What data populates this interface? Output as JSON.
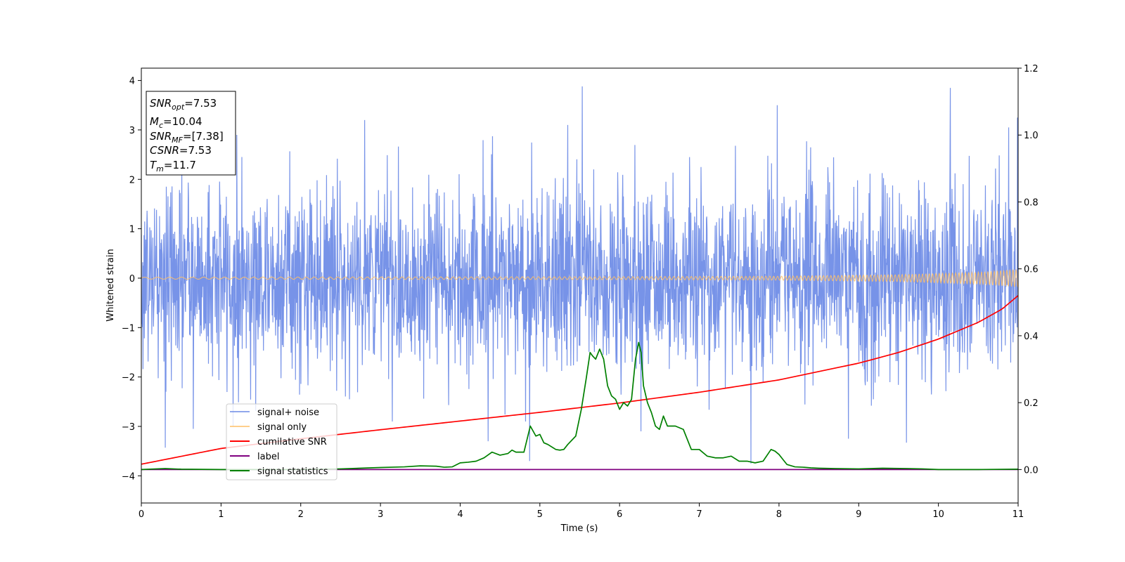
{
  "chart_data": {
    "type": "line",
    "xlabel": "Time (s)",
    "ylabel": "Whitened strain",
    "xlim": [
      0,
      11
    ],
    "ylim": [
      -4.55,
      4.25
    ],
    "y2lim": [
      -0.1,
      1.2
    ],
    "xticks": [
      0,
      1,
      2,
      3,
      4,
      5,
      6,
      7,
      8,
      9,
      10,
      11
    ],
    "yticks": [
      -4,
      -3,
      -2,
      -1,
      0,
      1,
      2,
      3,
      4
    ],
    "y2ticks": [
      0.0,
      0.2,
      0.4,
      0.6,
      0.8,
      1.0,
      1.2
    ],
    "grid": false,
    "legend_position": "lower-left",
    "annotation": [
      {
        "name": "SNR",
        "sub": "opt",
        "value": "=7.53"
      },
      {
        "name": "M",
        "sub": "c",
        "value": "=10.04"
      },
      {
        "name": "SNR",
        "sub": "MF",
        "value": "=[7.38]"
      },
      {
        "name": "CSNR",
        "sub": "",
        "value": "=7.53"
      },
      {
        "name": "T",
        "sub": "m",
        "value": "=11.7"
      }
    ],
    "series": [
      {
        "name": "signal+ noise",
        "axis": "left",
        "color": "#6b8ae6",
        "noise_std": 0.95,
        "peaks": [
          {
            "x": 0.3,
            "y": -3.43
          },
          {
            "x": 0.65,
            "y": -3.05
          },
          {
            "x": 1.15,
            "y": -3.0
          },
          {
            "x": 2.8,
            "y": 3.2
          },
          {
            "x": 3.15,
            "y": -2.9
          },
          {
            "x": 4.35,
            "y": -3.3
          },
          {
            "x": 4.87,
            "y": -3.7
          },
          {
            "x": 5.35,
            "y": 3.1
          },
          {
            "x": 5.53,
            "y": 3.88
          },
          {
            "x": 6.27,
            "y": -3.1
          },
          {
            "x": 7.65,
            "y": -3.75
          },
          {
            "x": 7.98,
            "y": 3.5
          },
          {
            "x": 8.87,
            "y": -3.25
          },
          {
            "x": 9.6,
            "y": -3.33
          },
          {
            "x": 10.15,
            "y": 3.85
          },
          {
            "x": 10.88,
            "y": 3.05
          },
          {
            "x": 10.99,
            "y": 3.25
          }
        ]
      },
      {
        "name": "signal only",
        "axis": "left",
        "color": "#ffbf66",
        "envelope": [
          [
            0,
            0.02
          ],
          [
            3,
            0.025
          ],
          [
            6,
            0.03
          ],
          [
            8,
            0.04
          ],
          [
            9.5,
            0.07
          ],
          [
            10.5,
            0.12
          ],
          [
            11,
            0.18
          ]
        ]
      },
      {
        "name": "cumilative SNR",
        "axis": "right",
        "color": "#ff0000",
        "x": [
          0,
          1,
          2,
          3,
          4,
          5,
          6,
          7,
          8,
          9,
          9.5,
          10,
          10.5,
          10.8,
          11
        ],
        "y": [
          0.016,
          0.063,
          0.092,
          0.119,
          0.145,
          0.171,
          0.199,
          0.231,
          0.268,
          0.318,
          0.35,
          0.39,
          0.44,
          0.48,
          0.52
        ]
      },
      {
        "name": "label",
        "axis": "right",
        "color": "#800080",
        "x": [
          0,
          11
        ],
        "y": [
          0.0,
          0.0
        ]
      },
      {
        "name": "signal statistics",
        "axis": "right",
        "color": "#008000",
        "x": [
          0,
          0.3,
          0.5,
          1,
          2,
          2.5,
          3,
          3.3,
          3.5,
          3.7,
          3.8,
          3.9,
          4.0,
          4.1,
          4.2,
          4.3,
          4.4,
          4.5,
          4.6,
          4.65,
          4.7,
          4.8,
          4.88,
          4.95,
          5.0,
          5.05,
          5.1,
          5.2,
          5.25,
          5.3,
          5.35,
          5.45,
          5.52,
          5.58,
          5.63,
          5.66,
          5.7,
          5.75,
          5.8,
          5.85,
          5.9,
          5.95,
          6.0,
          6.05,
          6.1,
          6.15,
          6.2,
          6.24,
          6.27,
          6.3,
          6.35,
          6.4,
          6.45,
          6.5,
          6.55,
          6.6,
          6.7,
          6.8,
          6.9,
          7.0,
          7.1,
          7.2,
          7.3,
          7.4,
          7.5,
          7.6,
          7.7,
          7.8,
          7.9,
          7.95,
          8.0,
          8.05,
          8.1,
          8.2,
          8.3,
          8.4,
          8.5,
          8.7,
          9.0,
          9.3,
          9.6,
          9.8,
          10.0,
          10.5,
          11
        ],
        "y": [
          0.0,
          0.003,
          0.001,
          0.0,
          0.0,
          0.002,
          0.006,
          0.008,
          0.011,
          0.01,
          0.007,
          0.008,
          0.02,
          0.022,
          0.025,
          0.035,
          0.052,
          0.043,
          0.048,
          0.058,
          0.052,
          0.052,
          0.13,
          0.1,
          0.105,
          0.08,
          0.075,
          0.06,
          0.058,
          0.06,
          0.075,
          0.1,
          0.18,
          0.27,
          0.35,
          0.34,
          0.33,
          0.36,
          0.33,
          0.25,
          0.22,
          0.21,
          0.18,
          0.2,
          0.19,
          0.21,
          0.33,
          0.38,
          0.35,
          0.25,
          0.2,
          0.17,
          0.13,
          0.12,
          0.16,
          0.13,
          0.13,
          0.12,
          0.06,
          0.06,
          0.04,
          0.035,
          0.035,
          0.04,
          0.025,
          0.025,
          0.02,
          0.025,
          0.06,
          0.055,
          0.045,
          0.03,
          0.015,
          0.008,
          0.007,
          0.005,
          0.004,
          0.003,
          0.002,
          0.004,
          0.003,
          0.002,
          0.0,
          0.0,
          0.001
        ]
      }
    ]
  }
}
